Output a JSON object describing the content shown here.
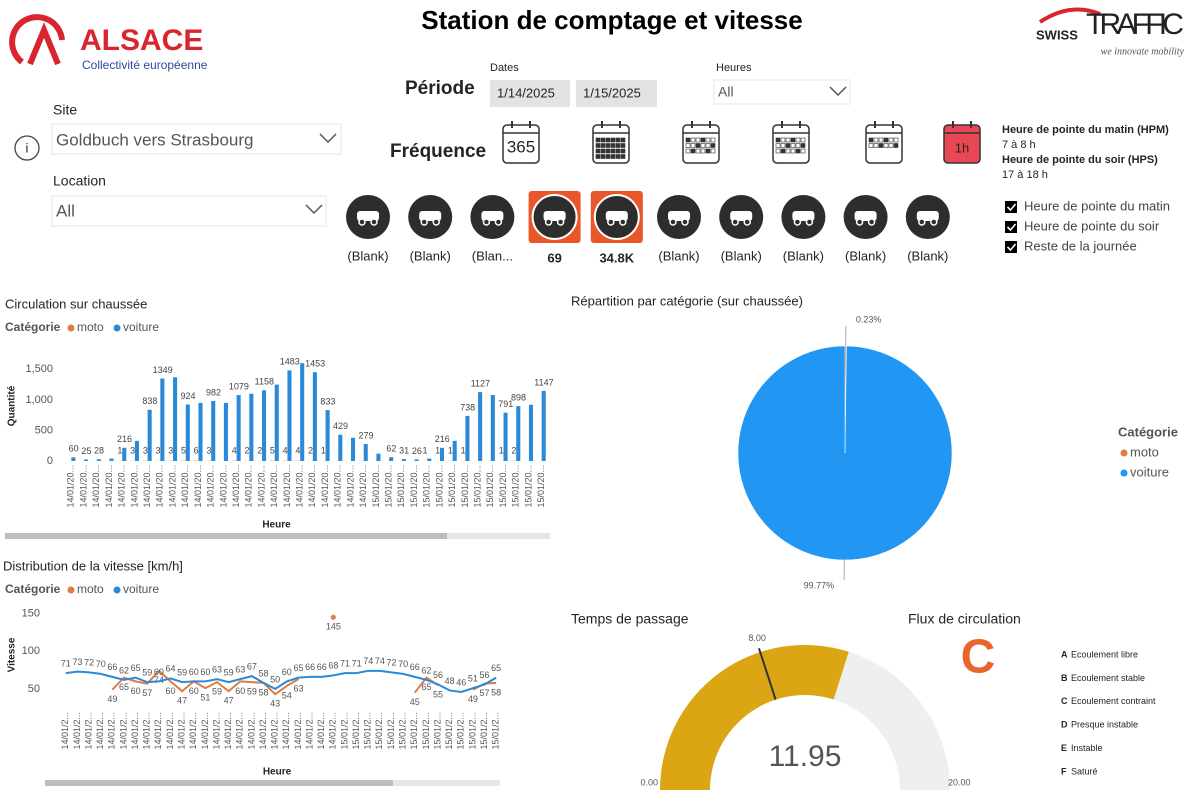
{
  "header": {
    "title": "Station de comptage et vitesse",
    "left_logo": {
      "name": "ALSACE",
      "sub": "Collectivité européenne"
    },
    "right_logo": {
      "brand1": "SWISS",
      "brand2": "TRAFFIC",
      "tagline": "we innovate mobility"
    }
  },
  "filters": {
    "site_label": "Site",
    "site_value": "Goldbuch vers Strasbourg",
    "location_label": "Location",
    "location_value": "All",
    "periode_label": "Période",
    "dates_label": "Dates",
    "date_start": "1/14/2025",
    "date_end": "1/15/2025",
    "heures_label": "Heures",
    "heures_value": "All",
    "frequence_label": "Fréquence",
    "freq_year": "365",
    "freq_hour": "1h"
  },
  "peak_info": [
    {
      "title": "Heure de pointe du matin (HPM)",
      "value": "7 à 8 h"
    },
    {
      "title": "Heure de pointe du soir (HPS)",
      "value": "17 à 18 h"
    }
  ],
  "checkboxes": [
    "Heure de pointe du matin",
    "Heure de pointe du soir",
    "Reste de la journée"
  ],
  "vehicle_cards": [
    {
      "label": "(Blank)",
      "selected": false
    },
    {
      "label": "(Blank)",
      "selected": false
    },
    {
      "label": "(Blan...",
      "selected": false
    },
    {
      "label": "69",
      "selected": true
    },
    {
      "label": "34.8K",
      "selected": true
    },
    {
      "label": "(Blank)",
      "selected": false
    },
    {
      "label": "(Blank)",
      "selected": false
    },
    {
      "label": "(Blank)",
      "selected": false
    },
    {
      "label": "(Blank)",
      "selected": false
    },
    {
      "label": "(Blank)",
      "selected": false
    }
  ],
  "flux": {
    "title": "Flux de circulation",
    "grade": "C",
    "levels": [
      {
        "letter": "A",
        "text": "Ecoulement libre"
      },
      {
        "letter": "B",
        "text": "Ecoulement stable"
      },
      {
        "letter": "C",
        "text": "Ecoulement contraint"
      },
      {
        "letter": "D",
        "text": "Presque instable"
      },
      {
        "letter": "E",
        "text": "Instable"
      },
      {
        "letter": "F",
        "text": "Saturé"
      }
    ]
  },
  "chart_data": [
    {
      "type": "bar",
      "title": "Circulation sur chaussée",
      "legend_title": "Catégorie",
      "x_label": "Heure",
      "y_label": "Quantité",
      "categories": [
        "14/01/20...",
        "14/01/20...",
        "14/01/20...",
        "14/01/20...",
        "14/01/20...",
        "14/01/20...",
        "14/01/20...",
        "14/01/20...",
        "14/01/20...",
        "14/01/20...",
        "14/01/20...",
        "14/01/20...",
        "14/01/20...",
        "14/01/20...",
        "14/01/20...",
        "14/01/20...",
        "14/01/20...",
        "14/01/20...",
        "14/01/20...",
        "14/01/20...",
        "14/01/20...",
        "14/01/20...",
        "14/01/20...",
        "14/01/20...",
        "15/01/20...",
        "15/01/20...",
        "15/01/20...",
        "15/01/20...",
        "15/01/20...",
        "15/01/20...",
        "15/01/20...",
        "15/01/20...",
        "15/01/20...",
        "15/01/20...",
        "15/01/20...",
        "15/01/20...",
        "15/01/20...",
        "15/01/20..."
      ],
      "series": [
        {
          "name": "moto",
          "color": "#e07b45",
          "values": [
            0,
            0,
            0,
            0,
            1,
            3,
            3,
            3,
            3,
            5,
            6,
            3,
            0,
            4,
            2,
            2,
            5,
            4,
            4,
            2,
            1,
            0,
            0,
            0,
            0,
            0,
            0,
            0,
            1,
            1,
            1,
            1,
            0,
            0,
            1,
            2,
            0,
            0
          ],
          "value_labels": [
            null,
            null,
            null,
            null,
            "1",
            "3",
            "3",
            "3",
            "3",
            "5",
            "6",
            "3",
            null,
            "4",
            "2",
            "2",
            "5",
            "4",
            "4",
            "2",
            "1",
            null,
            null,
            null,
            null,
            null,
            null,
            null,
            "1",
            "1",
            "1",
            "1",
            null,
            null,
            "1",
            "2",
            null,
            null
          ]
        },
        {
          "name": "voiture",
          "color": "#2b8ad8",
          "values": [
            60,
            25,
            28,
            40,
            216,
            330,
            838,
            1349,
            1370,
            924,
            950,
            982,
            950,
            1079,
            1100,
            1158,
            1250,
            1483,
            1600,
            1453,
            833,
            429,
            380,
            279,
            120,
            62,
            31,
            26,
            40,
            216,
            330,
            738,
            1127,
            1080,
            791,
            898,
            920,
            1147
          ],
          "value_labels": [
            "60",
            "25",
            "28",
            null,
            "216",
            null,
            "838",
            "1349",
            null,
            "924",
            null,
            "982",
            null,
            "1079",
            null,
            "1158",
            null,
            "1483",
            null,
            "1453",
            "833",
            "429",
            null,
            "279",
            null,
            "62",
            "31",
            "26",
            null,
            "216",
            null,
            "738",
            "1127",
            null,
            "791",
            "898",
            null,
            "1147"
          ]
        }
      ],
      "ylim": [
        0,
        1800
      ],
      "yticks": [
        0,
        500,
        {
          "value": 1000,
          "label": "1,000"
        },
        {
          "value": 1500,
          "label": "1,500"
        }
      ],
      "grid": false
    },
    {
      "type": "pie",
      "title": "Répartition par catégorie (sur chaussée)",
      "legend_title": "Catégorie",
      "categories": [
        "moto",
        "voiture"
      ],
      "values": [
        0.23,
        99.77
      ],
      "value_labels": [
        "0.23%",
        "99.77%"
      ],
      "colors": [
        "#e07b45",
        "#2196f3"
      ]
    },
    {
      "type": "line",
      "title": "Distribution de la vitesse [km/h]",
      "legend_title": "Catégorie",
      "x_label": "Heure",
      "y_label": "Vitesse",
      "categories": [
        "14/01/2...",
        "14/01/2...",
        "14/01/2...",
        "14/01/2...",
        "14/01/2...",
        "14/01/2...",
        "14/01/2...",
        "14/01/2...",
        "14/01/2...",
        "14/01/2...",
        "14/01/2...",
        "14/01/2...",
        "14/01/2...",
        "14/01/2...",
        "14/01/2...",
        "14/01/2...",
        "14/01/2...",
        "14/01/2...",
        "14/01/2...",
        "14/01/2...",
        "14/01/2...",
        "14/01/2...",
        "14/01/2...",
        "14/01/2...",
        "15/01/2...",
        "15/01/2...",
        "15/01/2...",
        "15/01/2...",
        "15/01/2...",
        "15/01/2...",
        "15/01/2...",
        "15/01/2...",
        "15/01/2...",
        "15/01/2...",
        "15/01/2...",
        "15/01/2...",
        "15/01/2...",
        "15/01/2..."
      ],
      "series": [
        {
          "name": "moto",
          "color": "#e07b45",
          "values": [
            null,
            null,
            null,
            null,
            49,
            65,
            60,
            57,
            74,
            60,
            47,
            60,
            51,
            59,
            47,
            60,
            59,
            58,
            43,
            54,
            63,
            null,
            null,
            145,
            null,
            null,
            null,
            null,
            null,
            null,
            45,
            65,
            55,
            null,
            null,
            49,
            57,
            58
          ]
        },
        {
          "name": "voiture",
          "color": "#2b8ad8",
          "values": [
            71,
            73,
            72,
            70,
            66,
            62,
            65,
            59,
            60,
            64,
            59,
            60,
            60,
            63,
            59,
            63,
            67,
            58,
            50,
            60,
            65,
            66,
            66,
            68,
            71,
            71,
            74,
            74,
            72,
            70,
            66,
            62,
            56,
            48,
            46,
            51,
            56,
            65
          ]
        }
      ],
      "ylim": [
        30,
        160
      ],
      "yticks": [
        50,
        100,
        150
      ],
      "grid": false
    },
    {
      "type": "gauge",
      "title": "Temps de passage",
      "value": 11.95,
      "value_label": "11.95",
      "target": 8,
      "gaugelim": [
        0,
        20
      ],
      "ticks": [
        {
          "value": 0,
          "label": "0.00"
        },
        {
          "value": 8,
          "label": "8.00"
        },
        {
          "value": 20,
          "label": "20.00"
        }
      ],
      "color": "#dba514",
      "track_color": "#efefef"
    }
  ]
}
